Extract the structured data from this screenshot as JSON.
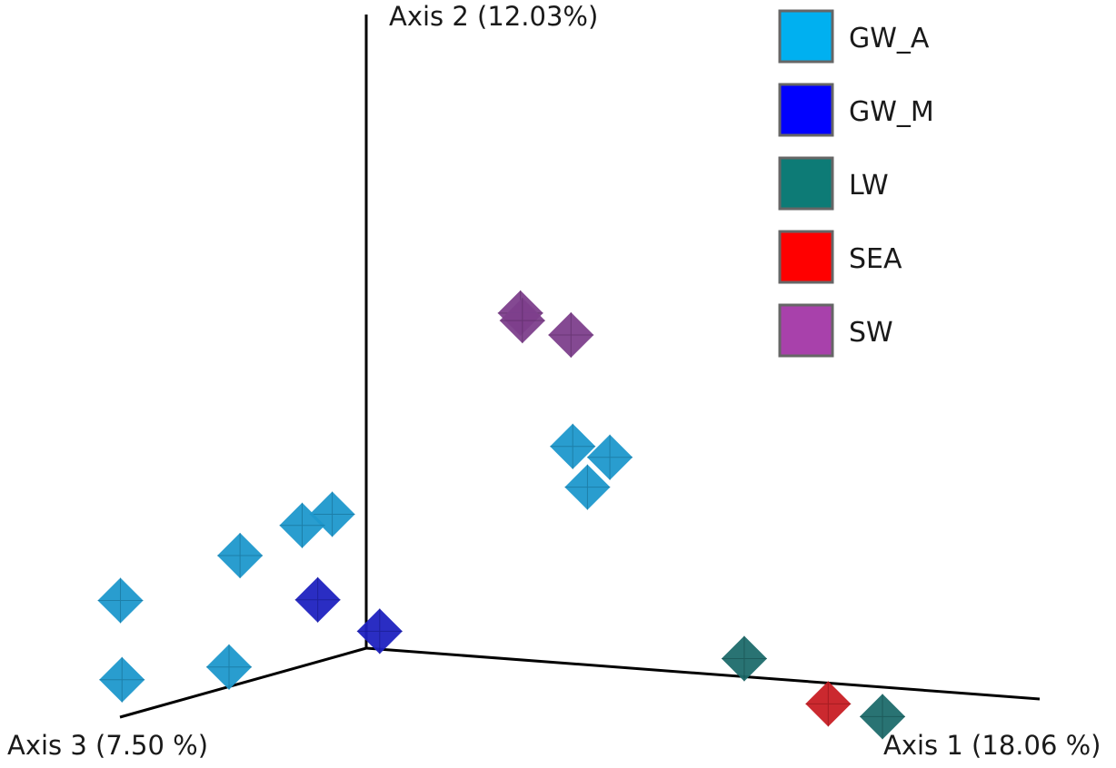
{
  "chart_data": {
    "type": "scatter",
    "subtype": "3d-pcoa",
    "title": "",
    "axes": {
      "axis1": "Axis 1 (18.06 %)",
      "axis2": "Axis 2 (12.03%)",
      "axis3": "Axis 3 (7.50 %)"
    },
    "legend_position": "top-right",
    "series": [
      {
        "name": "GW_A",
        "color": "#1e98cc",
        "legend_color": "#00b0f0",
        "points": [
          [
            4.0,
            4.2,
            -3.0
          ],
          [
            5.6,
            4.2,
            -1.8
          ],
          [
            4.9,
            3.5,
            -2.0
          ],
          [
            -0.2,
            3.0,
            1.4
          ],
          [
            -0.7,
            2.8,
            2.0
          ],
          [
            -1.5,
            2.3,
            3.7
          ],
          [
            -1.0,
            2.2,
            11.0
          ],
          [
            1.7,
            0.9,
            10.6
          ],
          [
            -0.3,
            0.7,
            12.3
          ]
        ]
      },
      {
        "name": "GW_M",
        "color": "#1f22c0",
        "legend_color": "#0000ff",
        "points": [
          [
            2.4,
            2.0,
            7.3
          ],
          [
            3.6,
            1.3,
            6.4
          ]
        ]
      },
      {
        "name": "LW",
        "color": "#1e6b6b",
        "legend_color": "#0d7b76",
        "points": [
          [
            9.8,
            0.3,
            -0.6
          ],
          [
            13.9,
            -0.6,
            0.2
          ]
        ]
      },
      {
        "name": "SEA",
        "color": "#c81e24",
        "legend_color": "#ff0000",
        "points": [
          [
            12.5,
            -0.4,
            0.3
          ]
        ]
      },
      {
        "name": "SW",
        "color": "#7d3f8c",
        "legend_color": "#a841ab",
        "points": [
          [
            2.4,
            6.9,
            -3.4
          ],
          [
            2.3,
            6.7,
            -3.7
          ],
          [
            3.7,
            6.5,
            -3.5
          ]
        ]
      }
    ]
  }
}
